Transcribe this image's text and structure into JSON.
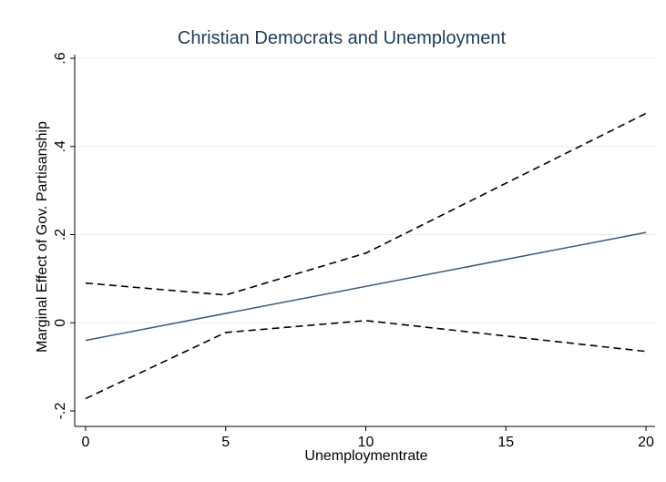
{
  "header_fragment": "nployment",
  "chart_data": {
    "type": "line",
    "title": "Christian Democrats and Unemployment",
    "xlabel": "Unemploymentrate",
    "ylabel": "Marginal Effect of Gov. Partisanship",
    "xlim": [
      0,
      20
    ],
    "ylim": [
      -0.2,
      0.6
    ],
    "xticks": [
      0,
      5,
      10,
      15,
      20
    ],
    "xtick_labels": [
      "0",
      "5",
      "10",
      "15",
      "20"
    ],
    "yticks": [
      -0.2,
      0,
      0.2,
      0.4,
      0.6
    ],
    "ytick_labels": [
      "-.2",
      "0",
      ".2",
      ".4",
      ".6"
    ],
    "grid": true,
    "series": [
      {
        "style": "solid",
        "color": "#3c5a78",
        "x": [
          0,
          20
        ],
        "y": [
          -0.04,
          0.205
        ]
      },
      {
        "style": "dashed",
        "color": "#000000",
        "x": [
          0,
          5,
          10,
          20
        ],
        "y": [
          0.09,
          0.063,
          0.158,
          0.475
        ]
      },
      {
        "style": "dashed",
        "color": "#000000",
        "x": [
          0,
          5,
          10,
          20
        ],
        "y": [
          -0.172,
          -0.022,
          0.005,
          -0.065
        ]
      }
    ]
  }
}
